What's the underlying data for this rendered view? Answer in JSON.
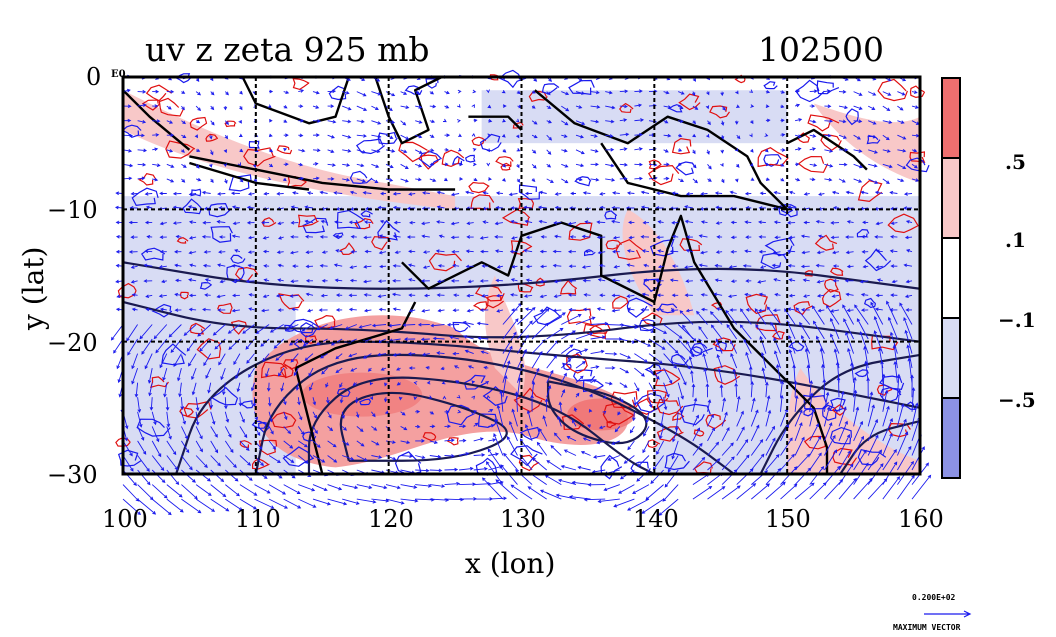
{
  "title": {
    "left": "uv  z  zeta  925  mb",
    "right": "102500"
  },
  "axes": {
    "xlabel": "x (lon)",
    "ylabel": "y (lat)",
    "xlim": [
      100,
      160
    ],
    "ylim": [
      -30,
      0
    ],
    "xticks": [
      "100",
      "110",
      "120",
      "130",
      "140",
      "150",
      "160"
    ],
    "yticks": [
      "0",
      "−10",
      "−20",
      "−30"
    ],
    "corner_label": "E0",
    "grid": true
  },
  "colorbar": {
    "labels": [
      ".5",
      ".1",
      "−.1",
      "−.5"
    ],
    "colors": [
      "#ef6f6f",
      "#f8c8c8",
      "#ffffff",
      "#d8dcf4",
      "#8c92e4"
    ]
  },
  "vector_key": {
    "value": "0.200E+02",
    "label": "MAXIMUM VECTOR"
  },
  "colors": {
    "positive_contour": "#e01010",
    "vector": "#1a1aee",
    "height_contour": "#1a1a50",
    "coast": "#000000"
  }
}
